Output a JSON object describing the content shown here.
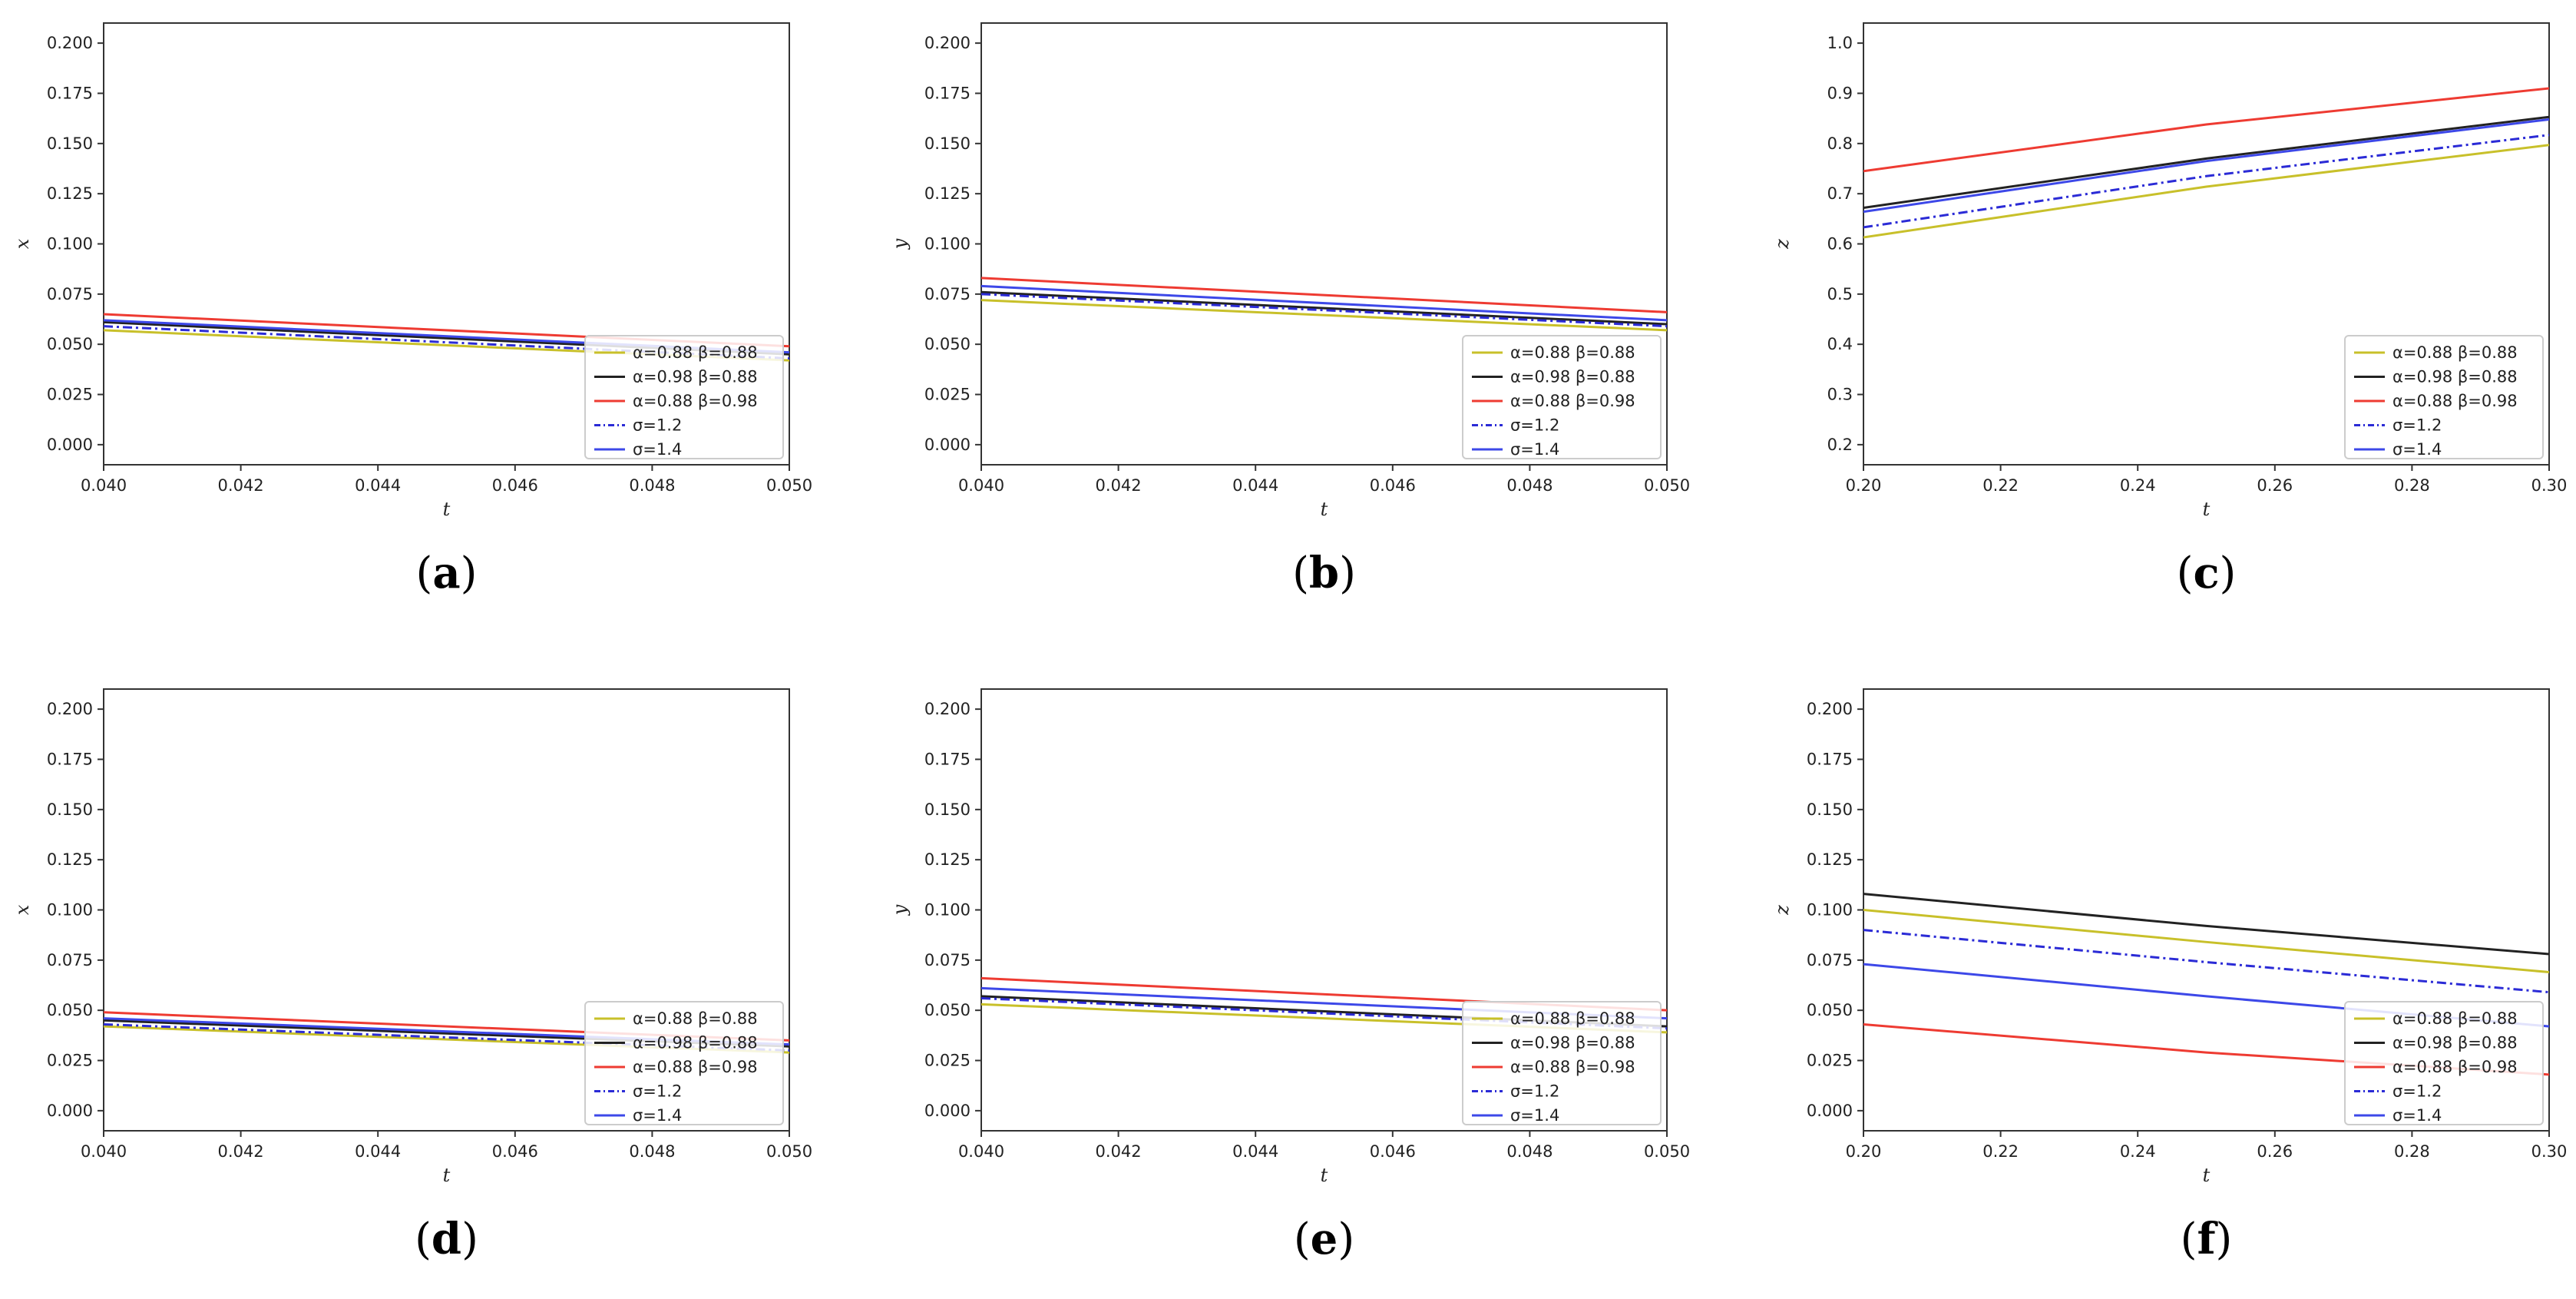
{
  "figure": {
    "description_free": true
  },
  "legend_items": [
    {
      "label": "α=0.88 β=0.88",
      "color": "#c8c02a",
      "dash": ""
    },
    {
      "label": "α=0.98 β=0.88",
      "color": "#222222",
      "dash": ""
    },
    {
      "label": "α=0.88 β=0.98",
      "color": "#ee3b32",
      "dash": ""
    },
    {
      "label": "σ=1.2",
      "color": "#2b2bd6",
      "dash": "12,5,3,5"
    },
    {
      "label": "σ=1.4",
      "color": "#3d48e8",
      "dash": ""
    }
  ],
  "chart_data": [
    {
      "type": "line",
      "panel": "(a)",
      "panel_letter": "a",
      "xlabel": "t",
      "ylabel": "x",
      "xlim": [
        0.04,
        0.05
      ],
      "ylim": [
        -0.01,
        0.21
      ],
      "xticks": [
        "0.040",
        "0.042",
        "0.044",
        "0.046",
        "0.048",
        "0.050"
      ],
      "yticks": [
        "0.000",
        "0.025",
        "0.050",
        "0.075",
        "0.100",
        "0.125",
        "0.150",
        "0.175",
        "0.200"
      ],
      "x": [
        0.04,
        0.05
      ],
      "series": [
        {
          "name": "α=0.88 β=0.88",
          "values": [
            0.057,
            0.042
          ]
        },
        {
          "name": "α=0.98 β=0.88",
          "values": [
            0.061,
            0.045
          ]
        },
        {
          "name": "α=0.88 β=0.98",
          "values": [
            0.065,
            0.049
          ]
        },
        {
          "name": "σ=1.2",
          "values": [
            0.059,
            0.043
          ]
        },
        {
          "name": "σ=1.4",
          "values": [
            0.062,
            0.046
          ]
        }
      ]
    },
    {
      "type": "line",
      "panel": "(b)",
      "panel_letter": "b",
      "xlabel": "t",
      "ylabel": "y",
      "xlim": [
        0.04,
        0.05
      ],
      "ylim": [
        -0.01,
        0.21
      ],
      "xticks": [
        "0.040",
        "0.042",
        "0.044",
        "0.046",
        "0.048",
        "0.050"
      ],
      "yticks": [
        "0.000",
        "0.025",
        "0.050",
        "0.075",
        "0.100",
        "0.125",
        "0.150",
        "0.175",
        "0.200"
      ],
      "x": [
        0.04,
        0.05
      ],
      "series": [
        {
          "name": "α=0.88 β=0.88",
          "values": [
            0.072,
            0.057
          ]
        },
        {
          "name": "α=0.98 β=0.88",
          "values": [
            0.076,
            0.06
          ]
        },
        {
          "name": "α=0.88 β=0.98",
          "values": [
            0.083,
            0.066
          ]
        },
        {
          "name": "σ=1.2",
          "values": [
            0.075,
            0.059
          ]
        },
        {
          "name": "σ=1.4",
          "values": [
            0.079,
            0.062
          ]
        }
      ]
    },
    {
      "type": "line",
      "panel": "(c)",
      "panel_letter": "c",
      "xlabel": "t",
      "ylabel": "z",
      "xlim": [
        0.2,
        0.3
      ],
      "ylim": [
        0.16,
        1.04
      ],
      "xticks": [
        "0.20",
        "0.22",
        "0.24",
        "0.26",
        "0.28",
        "0.30"
      ],
      "yticks": [
        "0.2",
        "0.3",
        "0.4",
        "0.5",
        "0.6",
        "0.7",
        "0.8",
        "0.9",
        "1.0"
      ],
      "x": [
        0.2,
        0.25,
        0.3
      ],
      "series": [
        {
          "name": "α=0.88 β=0.88",
          "values": [
            0.613,
            0.714,
            0.797
          ]
        },
        {
          "name": "α=0.98 β=0.88",
          "values": [
            0.672,
            0.77,
            0.853
          ]
        },
        {
          "name": "α=0.88 β=0.98",
          "values": [
            0.745,
            0.838,
            0.91
          ]
        },
        {
          "name": "σ=1.2",
          "values": [
            0.633,
            0.735,
            0.817
          ]
        },
        {
          "name": "σ=1.4",
          "values": [
            0.664,
            0.765,
            0.848
          ]
        }
      ]
    },
    {
      "type": "line",
      "panel": "(d)",
      "panel_letter": "d",
      "xlabel": "t",
      "ylabel": "x",
      "xlim": [
        0.04,
        0.05
      ],
      "ylim": [
        -0.01,
        0.21
      ],
      "xticks": [
        "0.040",
        "0.042",
        "0.044",
        "0.046",
        "0.048",
        "0.050"
      ],
      "yticks": [
        "0.000",
        "0.025",
        "0.050",
        "0.075",
        "0.100",
        "0.125",
        "0.150",
        "0.175",
        "0.200"
      ],
      "x": [
        0.04,
        0.05
      ],
      "series": [
        {
          "name": "α=0.88 β=0.88",
          "values": [
            0.042,
            0.029
          ]
        },
        {
          "name": "α=0.98 β=0.88",
          "values": [
            0.045,
            0.032
          ]
        },
        {
          "name": "α=0.88 β=0.98",
          "values": [
            0.049,
            0.035
          ]
        },
        {
          "name": "σ=1.2",
          "values": [
            0.043,
            0.03
          ]
        },
        {
          "name": "σ=1.4",
          "values": [
            0.046,
            0.033
          ]
        }
      ]
    },
    {
      "type": "line",
      "panel": "(e)",
      "panel_letter": "e",
      "xlabel": "t",
      "ylabel": "y",
      "xlim": [
        0.04,
        0.05
      ],
      "ylim": [
        -0.01,
        0.21
      ],
      "xticks": [
        "0.040",
        "0.042",
        "0.044",
        "0.046",
        "0.048",
        "0.050"
      ],
      "yticks": [
        "0.000",
        "0.025",
        "0.050",
        "0.075",
        "0.100",
        "0.125",
        "0.150",
        "0.175",
        "0.200"
      ],
      "x": [
        0.04,
        0.05
      ],
      "series": [
        {
          "name": "α=0.88 β=0.88",
          "values": [
            0.053,
            0.039
          ]
        },
        {
          "name": "α=0.98 β=0.88",
          "values": [
            0.057,
            0.042
          ]
        },
        {
          "name": "α=0.88 β=0.98",
          "values": [
            0.066,
            0.05
          ]
        },
        {
          "name": "σ=1.2",
          "values": [
            0.056,
            0.041
          ]
        },
        {
          "name": "σ=1.4",
          "values": [
            0.061,
            0.046
          ]
        }
      ]
    },
    {
      "type": "line",
      "panel": "(f)",
      "panel_letter": "f",
      "xlabel": "t",
      "ylabel": "z",
      "xlim": [
        0.2,
        0.3
      ],
      "ylim": [
        -0.01,
        0.21
      ],
      "xticks": [
        "0.20",
        "0.22",
        "0.24",
        "0.26",
        "0.28",
        "0.30"
      ],
      "yticks": [
        "0.000",
        "0.025",
        "0.050",
        "0.075",
        "0.100",
        "0.125",
        "0.150",
        "0.175",
        "0.200"
      ],
      "x": [
        0.2,
        0.25,
        0.3
      ],
      "series": [
        {
          "name": "α=0.88 β=0.88",
          "values": [
            0.1,
            0.084,
            0.069
          ]
        },
        {
          "name": "α=0.98 β=0.88",
          "values": [
            0.108,
            0.092,
            0.078
          ]
        },
        {
          "name": "α=0.88 β=0.98",
          "values": [
            0.043,
            0.029,
            0.018
          ]
        },
        {
          "name": "σ=1.2",
          "values": [
            0.09,
            0.074,
            0.059
          ]
        },
        {
          "name": "σ=1.4",
          "values": [
            0.073,
            0.057,
            0.042
          ]
        }
      ]
    }
  ]
}
